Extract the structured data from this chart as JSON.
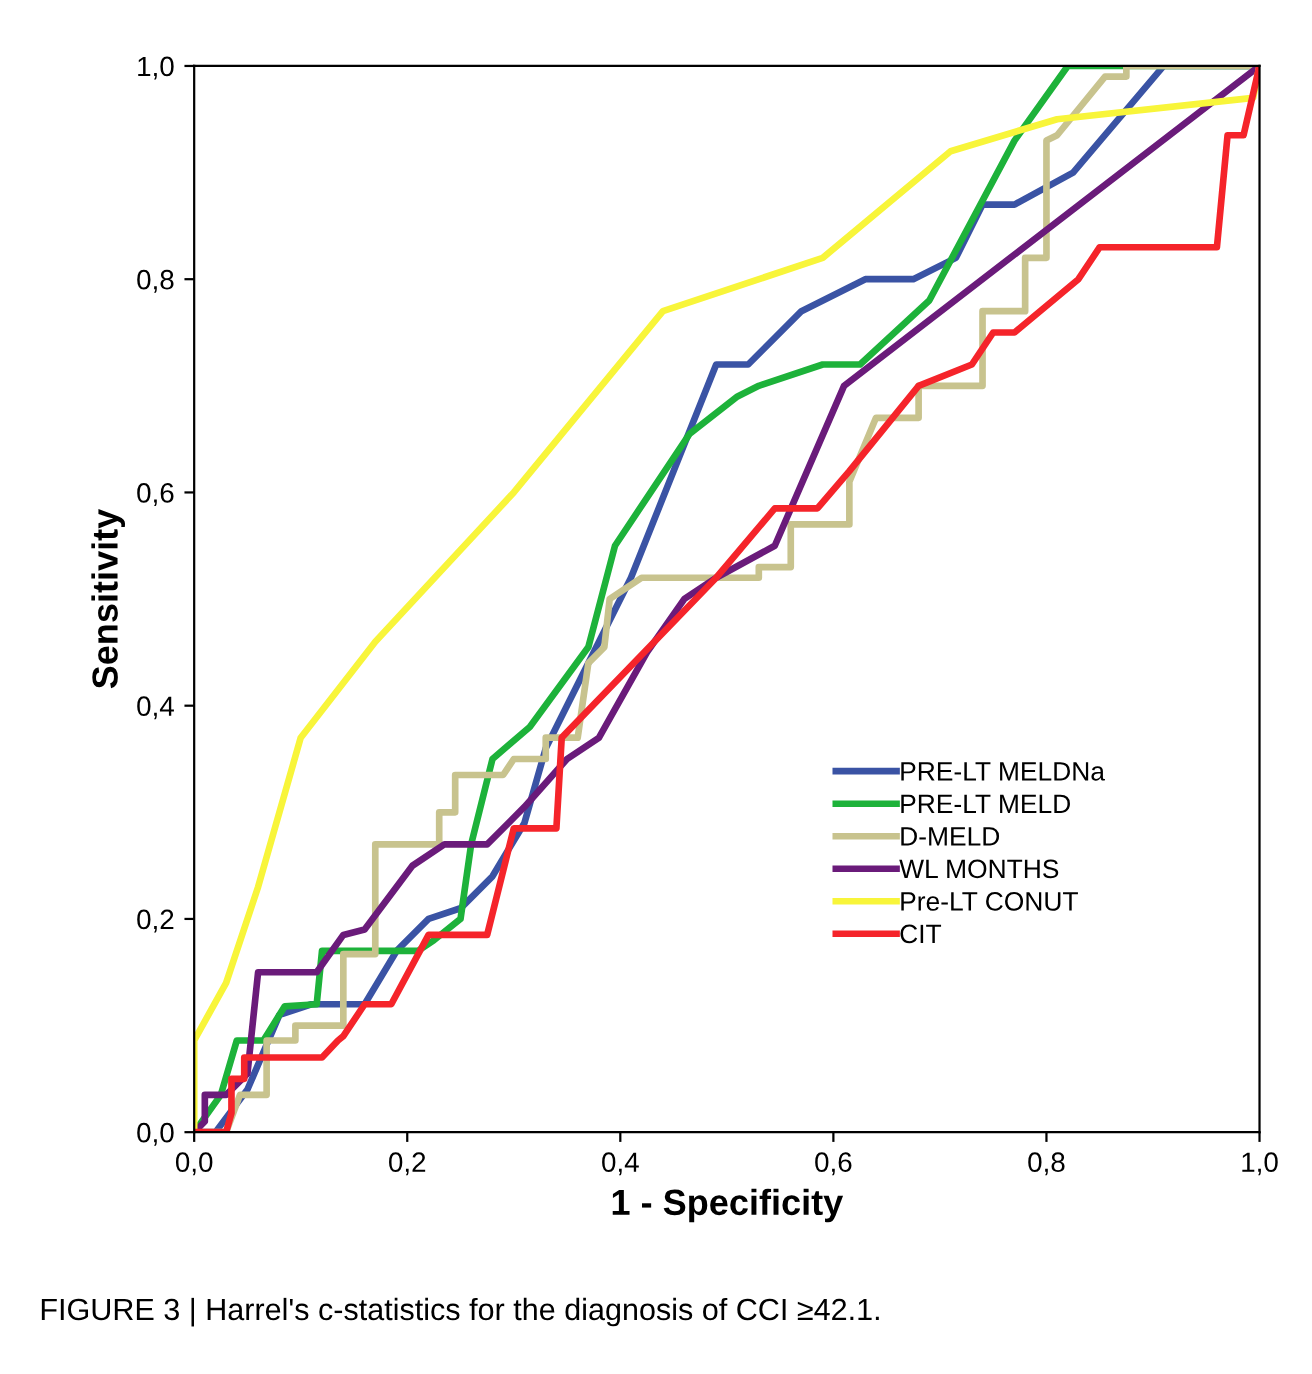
{
  "chart_data": {
    "type": "line",
    "xlabel": "1 - Specificity",
    "ylabel": "Sensitivity",
    "xlim": [
      0,
      1
    ],
    "ylim": [
      0,
      1
    ],
    "xticks": [
      {
        "value": 0,
        "label": "0,0"
      },
      {
        "value": 0.2,
        "label": "0,2"
      },
      {
        "value": 0.4,
        "label": "0,4"
      },
      {
        "value": 0.6,
        "label": "0,6"
      },
      {
        "value": 0.8,
        "label": "0,8"
      },
      {
        "value": 1,
        "label": "1,0"
      }
    ],
    "yticks": [
      {
        "value": 0,
        "label": "0,0"
      },
      {
        "value": 0.2,
        "label": "0,2"
      },
      {
        "value": 0.4,
        "label": "0,4"
      },
      {
        "value": 0.6,
        "label": "0,6"
      },
      {
        "value": 0.8,
        "label": "0,8"
      },
      {
        "value": 1,
        "label": "1,0"
      }
    ],
    "grid": false,
    "legend": "bottom right",
    "marker": "none",
    "line_style": "solid",
    "annotations": [
      "FIGURE 3 | Harrel's c-statistics for the diagnosis of CCI ≥42.1."
    ],
    "series": [
      {
        "name": "PRE-LT MELDNa",
        "color": "#3a53a4",
        "x": [
          0,
          0.02,
          0.05,
          0.08,
          0.11,
          0.16,
          0.19,
          0.22,
          0.25,
          0.28,
          0.31,
          0.33,
          0.41,
          0.49,
          0.52,
          0.57,
          0.63,
          0.675,
          0.715,
          0.74,
          0.77,
          0.825,
          0.91,
          1
        ],
        "values": [
          0,
          0,
          0.04,
          0.11,
          0.12,
          0.12,
          0.17,
          0.2,
          0.21,
          0.24,
          0.29,
          0.36,
          0.52,
          0.72,
          0.72,
          0.77,
          0.8,
          0.8,
          0.82,
          0.87,
          0.87,
          0.9,
          1,
          1
        ]
      },
      {
        "name": "PRE-LT MELD",
        "color": "#1db23a",
        "x": [
          0,
          0.025,
          0.04,
          0.065,
          0.085,
          0.115,
          0.12,
          0.21,
          0.225,
          0.25,
          0.26,
          0.28,
          0.315,
          0.37,
          0.395,
          0.465,
          0.51,
          0.53,
          0.59,
          0.625,
          0.69,
          0.77,
          0.82,
          1
        ],
        "values": [
          0,
          0.035,
          0.086,
          0.086,
          0.118,
          0.12,
          0.17,
          0.17,
          0.18,
          0.2,
          0.27,
          0.35,
          0.38,
          0.455,
          0.55,
          0.655,
          0.69,
          0.7,
          0.72,
          0.72,
          0.78,
          0.93,
          1,
          1
        ]
      },
      {
        "name": "D-MELD",
        "color": "#c8c38e",
        "x": [
          0,
          0.03,
          0.043,
          0.068,
          0.068,
          0.095,
          0.095,
          0.14,
          0.14,
          0.17,
          0.17,
          0.23,
          0.23,
          0.245,
          0.245,
          0.29,
          0.3,
          0.33,
          0.33,
          0.36,
          0.37,
          0.385,
          0.39,
          0.42,
          0.44,
          0.53,
          0.53,
          0.56,
          0.56,
          0.615,
          0.615,
          0.64,
          0.68,
          0.68,
          0.74,
          0.74,
          0.78,
          0.78,
          0.8,
          0.8,
          0.81,
          0.855,
          0.875,
          0.875,
          1
        ],
        "values": [
          0,
          0,
          0.035,
          0.035,
          0.086,
          0.086,
          0.1,
          0.1,
          0.167,
          0.167,
          0.27,
          0.27,
          0.3,
          0.3,
          0.335,
          0.335,
          0.35,
          0.35,
          0.37,
          0.37,
          0.44,
          0.455,
          0.5,
          0.52,
          0.52,
          0.52,
          0.53,
          0.53,
          0.57,
          0.57,
          0.61,
          0.67,
          0.67,
          0.7,
          0.7,
          0.77,
          0.77,
          0.82,
          0.82,
          0.93,
          0.935,
          0.99,
          0.99,
          1,
          1
        ]
      },
      {
        "name": "WL MONTHS",
        "color": "#6a1b7a",
        "x": [
          0,
          0.01,
          0.01,
          0.03,
          0.05,
          0.06,
          0.115,
          0.14,
          0.16,
          0.205,
          0.235,
          0.275,
          0.31,
          0.35,
          0.38,
          0.425,
          0.46,
          0.49,
          0.545,
          0.61,
          1
        ],
        "values": [
          0,
          0.01,
          0.035,
          0.035,
          0.055,
          0.15,
          0.15,
          0.185,
          0.19,
          0.25,
          0.27,
          0.27,
          0.305,
          0.35,
          0.37,
          0.45,
          0.5,
          0.52,
          0.55,
          0.7,
          1
        ]
      },
      {
        "name": "Pre-LT CONUT",
        "color": "#f8f53a",
        "x": [
          0,
          0,
          0.03,
          0.06,
          0.1,
          0.17,
          0.3,
          0.44,
          0.59,
          0.71,
          0.81,
          0.994,
          1
        ],
        "values": [
          0,
          0.086,
          0.14,
          0.23,
          0.37,
          0.46,
          0.6,
          0.77,
          0.82,
          0.92,
          0.95,
          0.97,
          1
        ]
      },
      {
        "name": "CIT",
        "color": "#f5242a",
        "x": [
          0,
          0.03,
          0.035,
          0.035,
          0.047,
          0.047,
          0.12,
          0.135,
          0.14,
          0.16,
          0.185,
          0.22,
          0.275,
          0.3,
          0.34,
          0.345,
          0.49,
          0.545,
          0.585,
          0.615,
          0.68,
          0.73,
          0.75,
          0.77,
          0.83,
          0.85,
          0.96,
          0.97,
          0.985,
          1
        ],
        "values": [
          0,
          0,
          0.018,
          0.05,
          0.05,
          0.07,
          0.07,
          0.086,
          0.09,
          0.12,
          0.12,
          0.185,
          0.185,
          0.285,
          0.285,
          0.37,
          0.52,
          0.585,
          0.585,
          0.62,
          0.7,
          0.72,
          0.75,
          0.75,
          0.8,
          0.83,
          0.83,
          0.935,
          0.935,
          1
        ]
      }
    ]
  }
}
